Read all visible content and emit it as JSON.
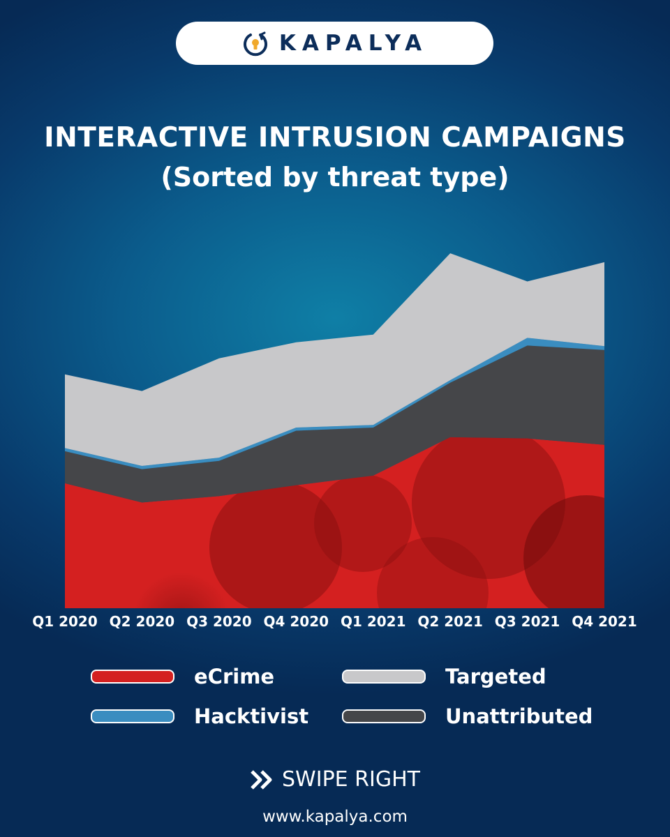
{
  "brand": {
    "name": "KAPALYA",
    "website": "www.kapalya.com"
  },
  "footer": {
    "cta": "SWIPE RIGHT"
  },
  "chart_data": {
    "type": "area",
    "stacked": true,
    "title": "INTERACTIVE INTRUSION CAMPAIGNS",
    "subtitle": "(Sorted by threat type)",
    "categories": [
      "Q1 2020",
      "Q2 2020",
      "Q3 2020",
      "Q4 2020",
      "Q1 2021",
      "Q2 2021",
      "Q3 2021",
      "Q4 2021"
    ],
    "series": [
      {
        "name": "eCrime",
        "color": "#d42020",
        "values": [
          195,
          165,
          175,
          192,
          207,
          267,
          265,
          255
        ]
      },
      {
        "name": "Unattributed",
        "color": "#454649",
        "values": [
          50,
          52,
          55,
          85,
          75,
          85,
          145,
          148
        ]
      },
      {
        "name": "Hacktivist",
        "color": "#3a8dc0",
        "values": [
          5,
          5,
          5,
          5,
          4,
          4,
          12,
          6
        ]
      },
      {
        "name": "Targeted",
        "color": "#c8c8ca",
        "values": [
          115,
          117,
          155,
          133,
          141,
          198,
          88,
          131
        ]
      }
    ],
    "ylim": [
      0,
      590
    ],
    "grid": false,
    "legend_position": "bottom"
  }
}
